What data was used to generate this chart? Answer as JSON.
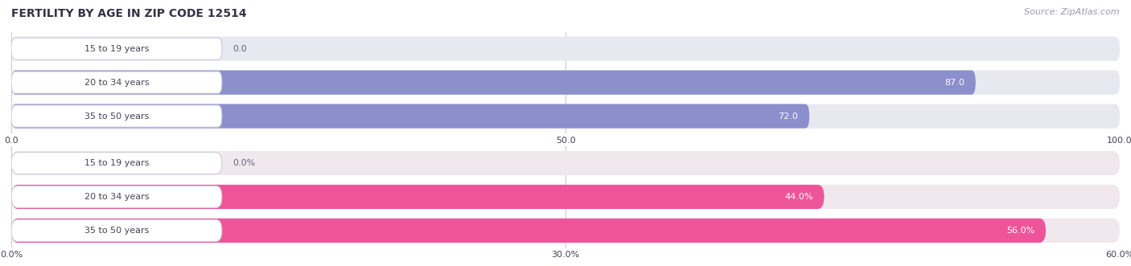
{
  "title": "FERTILITY BY AGE IN ZIP CODE 12514",
  "source": "Source: ZipAtlas.com",
  "top_chart": {
    "categories": [
      "15 to 19 years",
      "20 to 34 years",
      "35 to 50 years"
    ],
    "values": [
      0.0,
      87.0,
      72.0
    ],
    "bar_color": "#8b8fcc",
    "bg_color": "#e8e8f0",
    "xlim": [
      0,
      100
    ],
    "xticks": [
      0.0,
      50.0,
      100.0
    ],
    "xticklabels": [
      "0.0",
      "50.0",
      "100.0"
    ]
  },
  "bottom_chart": {
    "categories": [
      "15 to 19 years",
      "20 to 34 years",
      "35 to 50 years"
    ],
    "values": [
      0.0,
      44.0,
      56.0
    ],
    "bar_color": "#ee5599",
    "bg_color": "#f0e8ec",
    "xlim": [
      0,
      60
    ],
    "xticks": [
      0.0,
      30.0,
      60.0
    ],
    "xticklabels": [
      "0.0%",
      "30.0%",
      "60.0%"
    ]
  },
  "label_fg": "#444455",
  "value_inside_color": "#ffffff",
  "value_outside_color": "#666677",
  "bg_color_main": "#ffffff",
  "title_color": "#333344",
  "source_color": "#999aaa",
  "title_fontsize": 10,
  "source_fontsize": 8,
  "bar_fontsize": 8,
  "tick_fontsize": 8
}
